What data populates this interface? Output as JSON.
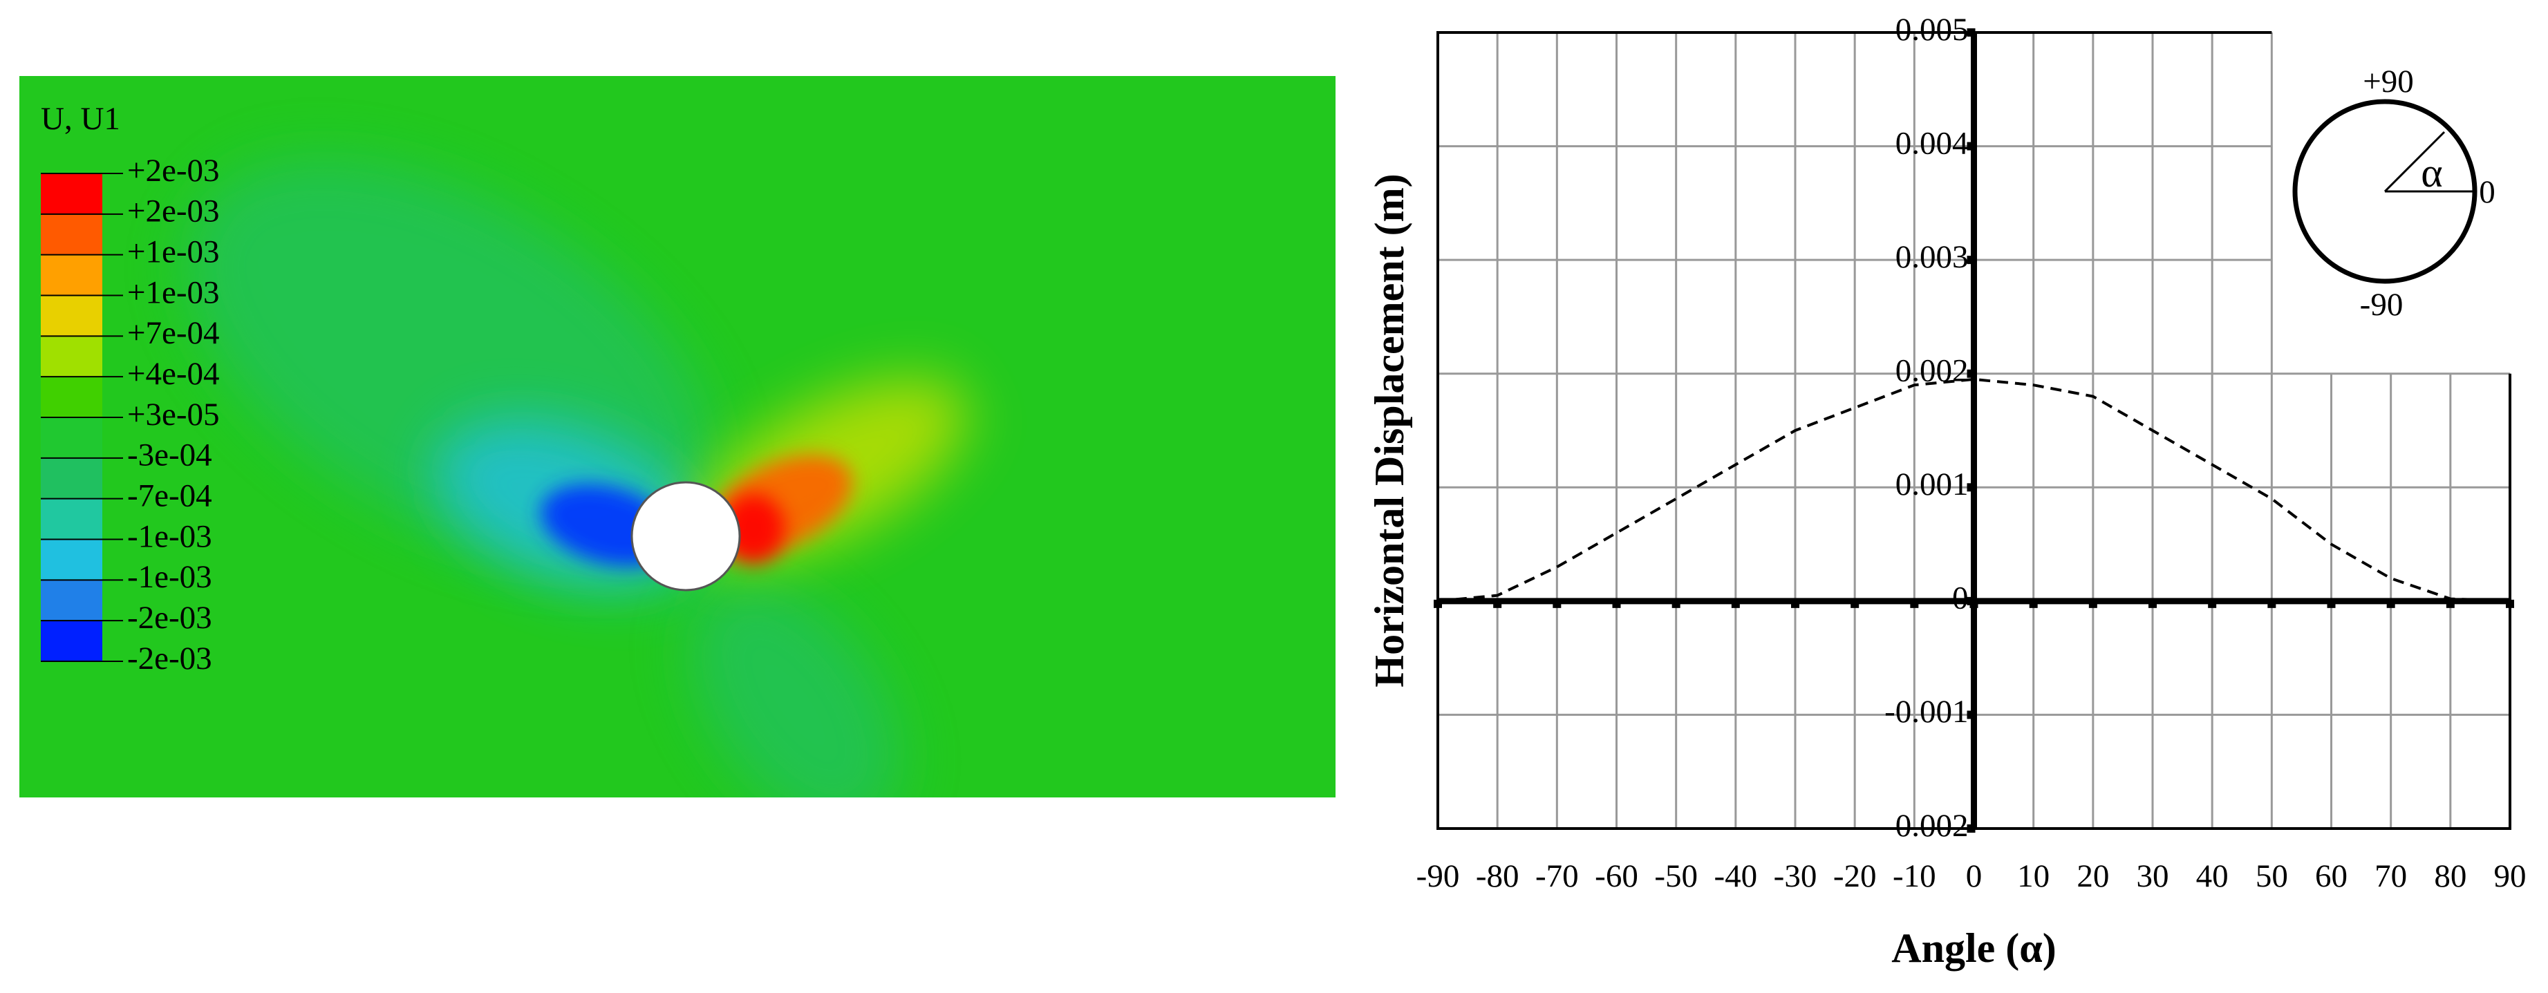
{
  "chart_data": [
    {
      "type": "contour",
      "title": "U, U1",
      "colors": [
        "#ff0000",
        "#ff5a00",
        "#ffa000",
        "#e8d000",
        "#a0e000",
        "#40d000",
        "#20c830",
        "#20c060",
        "#20c8a0",
        "#20c0e0",
        "#2080e8",
        "#0020ff"
      ],
      "colorbar_ticks": [
        {
          "value": 0.002,
          "label": "+2e-03"
        },
        {
          "value": 0.0017,
          "label": "+2e-03"
        },
        {
          "value": 0.0014,
          "label": "+1e-03"
        },
        {
          "value": 0.001,
          "label": "+1e-03"
        },
        {
          "value": 0.0007,
          "label": "+7e-04"
        },
        {
          "value": 0.0004,
          "label": "+4e-04"
        },
        {
          "value": 3e-05,
          "label": "+3e-05"
        },
        {
          "value": -0.0003,
          "label": "-3e-04"
        },
        {
          "value": -0.0007,
          "label": "-7e-04"
        },
        {
          "value": -0.001,
          "label": "-1e-03"
        },
        {
          "value": -0.0013,
          "label": "-1e-03"
        },
        {
          "value": -0.0017,
          "label": "-2e-03"
        },
        {
          "value": -0.002,
          "label": "-2e-03"
        }
      ]
    },
    {
      "type": "line",
      "xlabel": "Angle (α)",
      "ylabel": "Horizontal Displacement (m)",
      "x": [
        -90,
        -80,
        -70,
        -60,
        -50,
        -40,
        -30,
        -20,
        -10,
        0,
        10,
        20,
        30,
        40,
        50,
        60,
        70,
        80,
        90
      ],
      "values": [
        0,
        5e-05,
        0.0003,
        0.0006,
        0.0009,
        0.0012,
        0.0015,
        0.0017,
        0.0019,
        0.00195,
        0.0019,
        0.0018,
        0.0015,
        0.0012,
        0.0009,
        0.0005,
        0.0002,
        2e-05,
        0
      ],
      "color": "#000000",
      "line_style": "dashed",
      "xlim": [
        -90,
        90
      ],
      "xticks": [
        -90,
        -80,
        -70,
        -60,
        -50,
        -40,
        -30,
        -20,
        -10,
        0,
        10,
        20,
        30,
        40,
        50,
        60,
        70,
        80,
        90
      ],
      "ylim": [
        -0.002,
        0.005
      ],
      "yticks": [
        -0.002,
        -0.001,
        0,
        0.001,
        0.002,
        0.003,
        0.004,
        0.005
      ],
      "grid": true,
      "annotations": [
        "+90",
        "0",
        "-90",
        "α"
      ]
    }
  ]
}
